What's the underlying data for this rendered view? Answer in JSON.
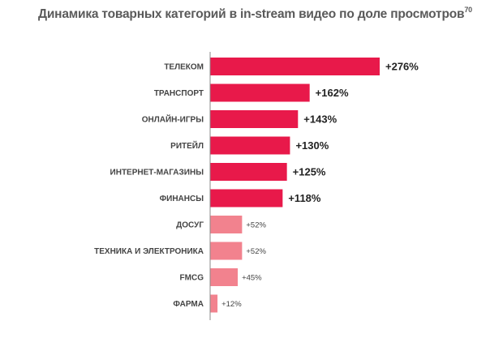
{
  "colors": {
    "strong": "#e8194a",
    "weak": "#f2828e",
    "axis": "#888888"
  },
  "chart_data": {
    "type": "bar",
    "orientation": "horizontal",
    "title": "Динамика товарных категорий в in-stream видео по доле просмотров",
    "title_superscript": "70",
    "categories": [
      "ТЕЛЕКОМ",
      "ТРАНСПОРТ",
      "ОНЛАЙН-ИГРЫ",
      "РИТЕЙЛ",
      "ИНТЕРНЕТ-МАГАЗИНЫ",
      "ФИНАНСЫ",
      "ДОСУГ",
      "ТЕХНИКА И ЭЛЕКТРОНИКА",
      "FMCG",
      "ФАРМА"
    ],
    "values": [
      276,
      162,
      143,
      130,
      125,
      118,
      52,
      52,
      45,
      12
    ],
    "labels": [
      "+276%",
      "+162%",
      "+143%",
      "+130%",
      "+125%",
      "+118%",
      "+52%",
      "+52%",
      "+45%",
      "+12%"
    ],
    "highlight": [
      true,
      true,
      true,
      true,
      true,
      true,
      false,
      false,
      false,
      false
    ],
    "xlim": [
      0,
      276
    ],
    "grid": false,
    "legend": "none"
  }
}
